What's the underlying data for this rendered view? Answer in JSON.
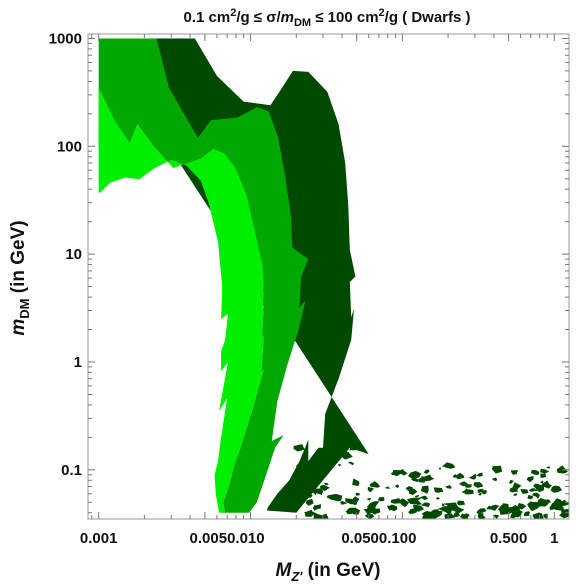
{
  "chart_data": {
    "type": "area",
    "title": "0.1 cm²/g ≤ σ/m_DM ≤ 100 cm²/g ( Dwarfs )",
    "title_parts": {
      "a": "0.1 cm",
      "a_sup": "2",
      "b": "/g ≤ σ/",
      "c": "m",
      "c_sub": "DM",
      "d": " ≤ 100 cm",
      "d_sup": "2",
      "e": "/g ( Dwarfs )"
    },
    "xlabel": "M_Z' (in GeV)",
    "xlabel_parts": {
      "main": "M",
      "sub": "Z'",
      "rest": " (in GeV)"
    },
    "ylabel": "m_DM (in GeV)",
    "ylabel_parts": {
      "main": "m",
      "sub": "DM",
      "rest": " (in GeV)"
    },
    "x_scale": "log",
    "y_scale": "log",
    "xlim": [
      0.00085,
      1.25
    ],
    "ylim": [
      0.035,
      1100
    ],
    "x_ticks": [
      {
        "value": 0.001,
        "label": "0.001"
      },
      {
        "value": 0.005,
        "label": "0.005"
      },
      {
        "value": 0.01,
        "label": "0.010"
      },
      {
        "value": 0.05,
        "label": "0.050"
      },
      {
        "value": 0.1,
        "label": "0.100"
      },
      {
        "value": 0.5,
        "label": "0.500"
      },
      {
        "value": 1,
        "label": "1"
      }
    ],
    "x_tick_label_rows": [
      {
        "text": "0.001",
        "value": 0.001
      },
      {
        "text": "0.0050.010",
        "value": 0.007
      },
      {
        "text": "0.0500.100",
        "value": 0.07
      },
      {
        "text": "0.500",
        "value": 0.5
      },
      {
        "text": "1",
        "value": 1
      }
    ],
    "y_ticks": [
      {
        "value": 0.1,
        "label": "0.1"
      },
      {
        "value": 1,
        "label": "1"
      },
      {
        "value": 10,
        "label": "10"
      },
      {
        "value": 100,
        "label": "100"
      },
      {
        "value": 1000,
        "label": "1000"
      }
    ],
    "grid": false,
    "colors": {
      "light": "#00ee00",
      "mid": "#00a800",
      "dark": "#004a00",
      "background": "#ffffff",
      "frame": "#999999"
    },
    "regions": [
      {
        "shade": "dark",
        "points": [
          [
            0.001,
            1000
          ],
          [
            0.0043,
            1000
          ],
          [
            0.006,
            450
          ],
          [
            0.009,
            260
          ],
          [
            0.0135,
            240
          ],
          [
            0.0155,
            320
          ],
          [
            0.019,
            500
          ],
          [
            0.024,
            490
          ],
          [
            0.032,
            320
          ],
          [
            0.038,
            160
          ],
          [
            0.042,
            70
          ],
          [
            0.044,
            28
          ],
          [
            0.045,
            11
          ],
          [
            0.049,
            6.2
          ],
          [
            0.045,
            5.5
          ],
          [
            0.046,
            2.6
          ],
          [
            0.048,
            3.1
          ],
          [
            0.046,
            1.6
          ],
          [
            0.038,
            0.7
          ],
          [
            0.031,
            0.33
          ],
          [
            0.03,
            0.16
          ],
          [
            0.028,
            0.16
          ],
          [
            0.025,
            0.13
          ],
          [
            0.024,
            0.12
          ],
          [
            0.024,
            0.19
          ],
          [
            0.021,
            0.12
          ],
          [
            0.018,
            0.08
          ],
          [
            0.015,
            0.06
          ],
          [
            0.013,
            0.045
          ],
          [
            0.0128,
            0.042
          ],
          [
            0.02,
            0.04
          ],
          [
            0.045,
            0.16
          ],
          [
            0.06,
            0.14
          ]
        ]
      },
      {
        "shade": "mid",
        "points": [
          [
            0.001,
            1000
          ],
          [
            0.0024,
            1000
          ],
          [
            0.0029,
            350
          ],
          [
            0.0045,
            120
          ],
          [
            0.0055,
            175
          ],
          [
            0.0082,
            185
          ],
          [
            0.011,
            230
          ],
          [
            0.0132,
            210
          ],
          [
            0.0152,
            120
          ],
          [
            0.017,
            50
          ],
          [
            0.0185,
            22
          ],
          [
            0.0188,
            11.5
          ],
          [
            0.024,
            9
          ],
          [
            0.0215,
            6.2
          ],
          [
            0.021,
            3.2
          ],
          [
            0.023,
            3.7
          ],
          [
            0.0205,
            1.9
          ],
          [
            0.0175,
            0.95
          ],
          [
            0.015,
            0.43
          ],
          [
            0.0138,
            0.185
          ],
          [
            0.0165,
            0.21
          ],
          [
            0.0145,
            0.16
          ],
          [
            0.0125,
            0.085
          ],
          [
            0.011,
            0.05
          ],
          [
            0.0098,
            0.04
          ],
          [
            0.0068,
            0.04
          ],
          [
            0.0066,
            0.05
          ],
          [
            0.0072,
            0.07
          ],
          [
            0.0078,
            0.11
          ],
          [
            0.0087,
            0.17
          ],
          [
            0.0102,
            0.35
          ],
          [
            0.0122,
            0.85
          ],
          [
            0.0118,
            0.8
          ],
          [
            0.0122,
            1.75
          ],
          [
            0.0119,
            1.65
          ],
          [
            0.0122,
            3.4
          ],
          [
            0.012,
            3.1
          ],
          [
            0.0122,
            5.4
          ],
          [
            0.012,
            8
          ],
          [
            0.0113,
            11.5
          ],
          [
            0.0094,
            36
          ],
          [
            0.0079,
            64
          ],
          [
            0.0067,
            86
          ],
          [
            0.0057,
            95
          ],
          [
            0.0047,
            77
          ],
          [
            0.0031,
            63
          ],
          [
            0.0023,
            100
          ],
          [
            0.0018,
            160
          ],
          [
            0.0016,
            108
          ],
          [
            0.0012,
            98
          ],
          [
            0.001,
            96
          ]
        ]
      },
      {
        "shade": "light",
        "points": [
          [
            0.001,
            350
          ],
          [
            0.0013,
            165
          ],
          [
            0.0016,
            108
          ],
          [
            0.0018,
            160
          ],
          [
            0.0023,
            100
          ],
          [
            0.0031,
            63
          ],
          [
            0.0047,
            77
          ],
          [
            0.0057,
            95
          ],
          [
            0.0067,
            86
          ],
          [
            0.0079,
            64
          ],
          [
            0.0094,
            36
          ],
          [
            0.0113,
            11.5
          ],
          [
            0.012,
            8
          ],
          [
            0.0122,
            5.4
          ],
          [
            0.012,
            3.1
          ],
          [
            0.0122,
            3.4
          ],
          [
            0.0119,
            1.65
          ],
          [
            0.0122,
            1.75
          ],
          [
            0.0118,
            0.8
          ],
          [
            0.0122,
            0.85
          ],
          [
            0.0102,
            0.35
          ],
          [
            0.0087,
            0.17
          ],
          [
            0.0078,
            0.11
          ],
          [
            0.0072,
            0.07
          ],
          [
            0.0066,
            0.05
          ],
          [
            0.0068,
            0.04
          ],
          [
            0.0062,
            0.04
          ],
          [
            0.0059,
            0.06
          ],
          [
            0.0058,
            0.09
          ],
          [
            0.0061,
            0.12
          ],
          [
            0.0064,
            0.2
          ],
          [
            0.007,
            0.46
          ],
          [
            0.0062,
            0.35
          ],
          [
            0.0071,
            1
          ],
          [
            0.0064,
            0.82
          ],
          [
            0.0064,
            1.25
          ],
          [
            0.0068,
            1.6
          ],
          [
            0.0071,
            2.8
          ],
          [
            0.0064,
            2.5
          ],
          [
            0.0065,
            5
          ],
          [
            0.0061,
            13
          ],
          [
            0.0053,
            30
          ],
          [
            0.0047,
            48
          ],
          [
            0.0038,
            66
          ],
          [
            0.003,
            75
          ],
          [
            0.0023,
            62
          ],
          [
            0.0018,
            48
          ],
          [
            0.0014,
            42
          ],
          [
            0.001,
            37
          ]
        ]
      },
      {
        "shade": "white",
        "points": [
          [
            0.001,
            36
          ],
          [
            0.0012,
            46
          ],
          [
            0.0015,
            51
          ],
          [
            0.0019,
            49
          ],
          [
            0.0023,
            40
          ],
          [
            0.0029,
            29
          ],
          [
            0.0034,
            19
          ],
          [
            0.0038,
            12
          ],
          [
            0.0041,
            8.6
          ],
          [
            0.0045,
            4.2
          ],
          [
            0.0048,
            1.9
          ],
          [
            0.0049,
            1.85
          ],
          [
            0.0045,
            0.87
          ],
          [
            0.0051,
            0.8
          ],
          [
            0.0056,
            0.4
          ],
          [
            0.0049,
            0.13
          ],
          [
            0.0041,
            0.06
          ],
          [
            0.0037,
            0.04
          ],
          [
            0.001,
            0.04
          ]
        ]
      }
    ],
    "speckle": {
      "shade": "dark",
      "x_range": [
        0.02,
        1.2
      ],
      "y_range": [
        0.037,
        0.15
      ]
    }
  }
}
